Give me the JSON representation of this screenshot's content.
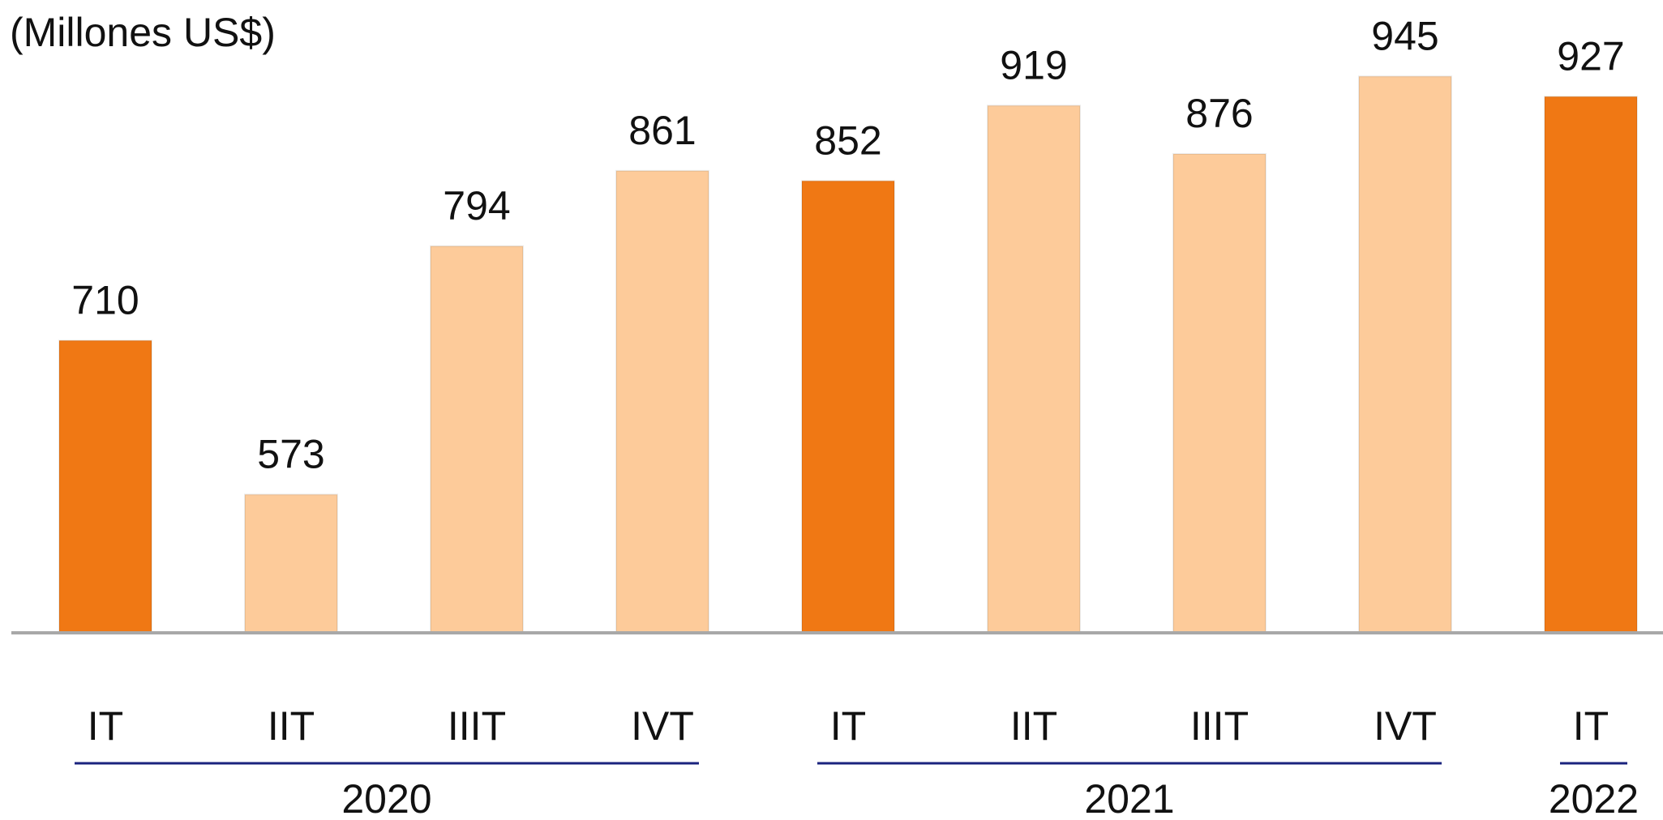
{
  "chart_data": {
    "type": "bar",
    "title": "(Millones US$)",
    "groups": [
      {
        "label": "2020",
        "categories": [
          "IT",
          "IIT",
          "IIIT",
          "IVT"
        ]
      },
      {
        "label": "2021",
        "categories": [
          "IT",
          "IIT",
          "IIIT",
          "IVT"
        ]
      },
      {
        "label": "2022",
        "categories": [
          "IT"
        ]
      }
    ],
    "values": [
      710,
      573,
      794,
      861,
      852,
      919,
      876,
      945,
      927
    ],
    "colors": [
      "#f07814",
      "#fdcb9a",
      "#fdcb9a",
      "#fdcb9a",
      "#f07814",
      "#fdcb9a",
      "#fdcb9a",
      "#fdcb9a",
      "#f07814"
    ],
    "ylim": [
      450,
      1000
    ]
  }
}
